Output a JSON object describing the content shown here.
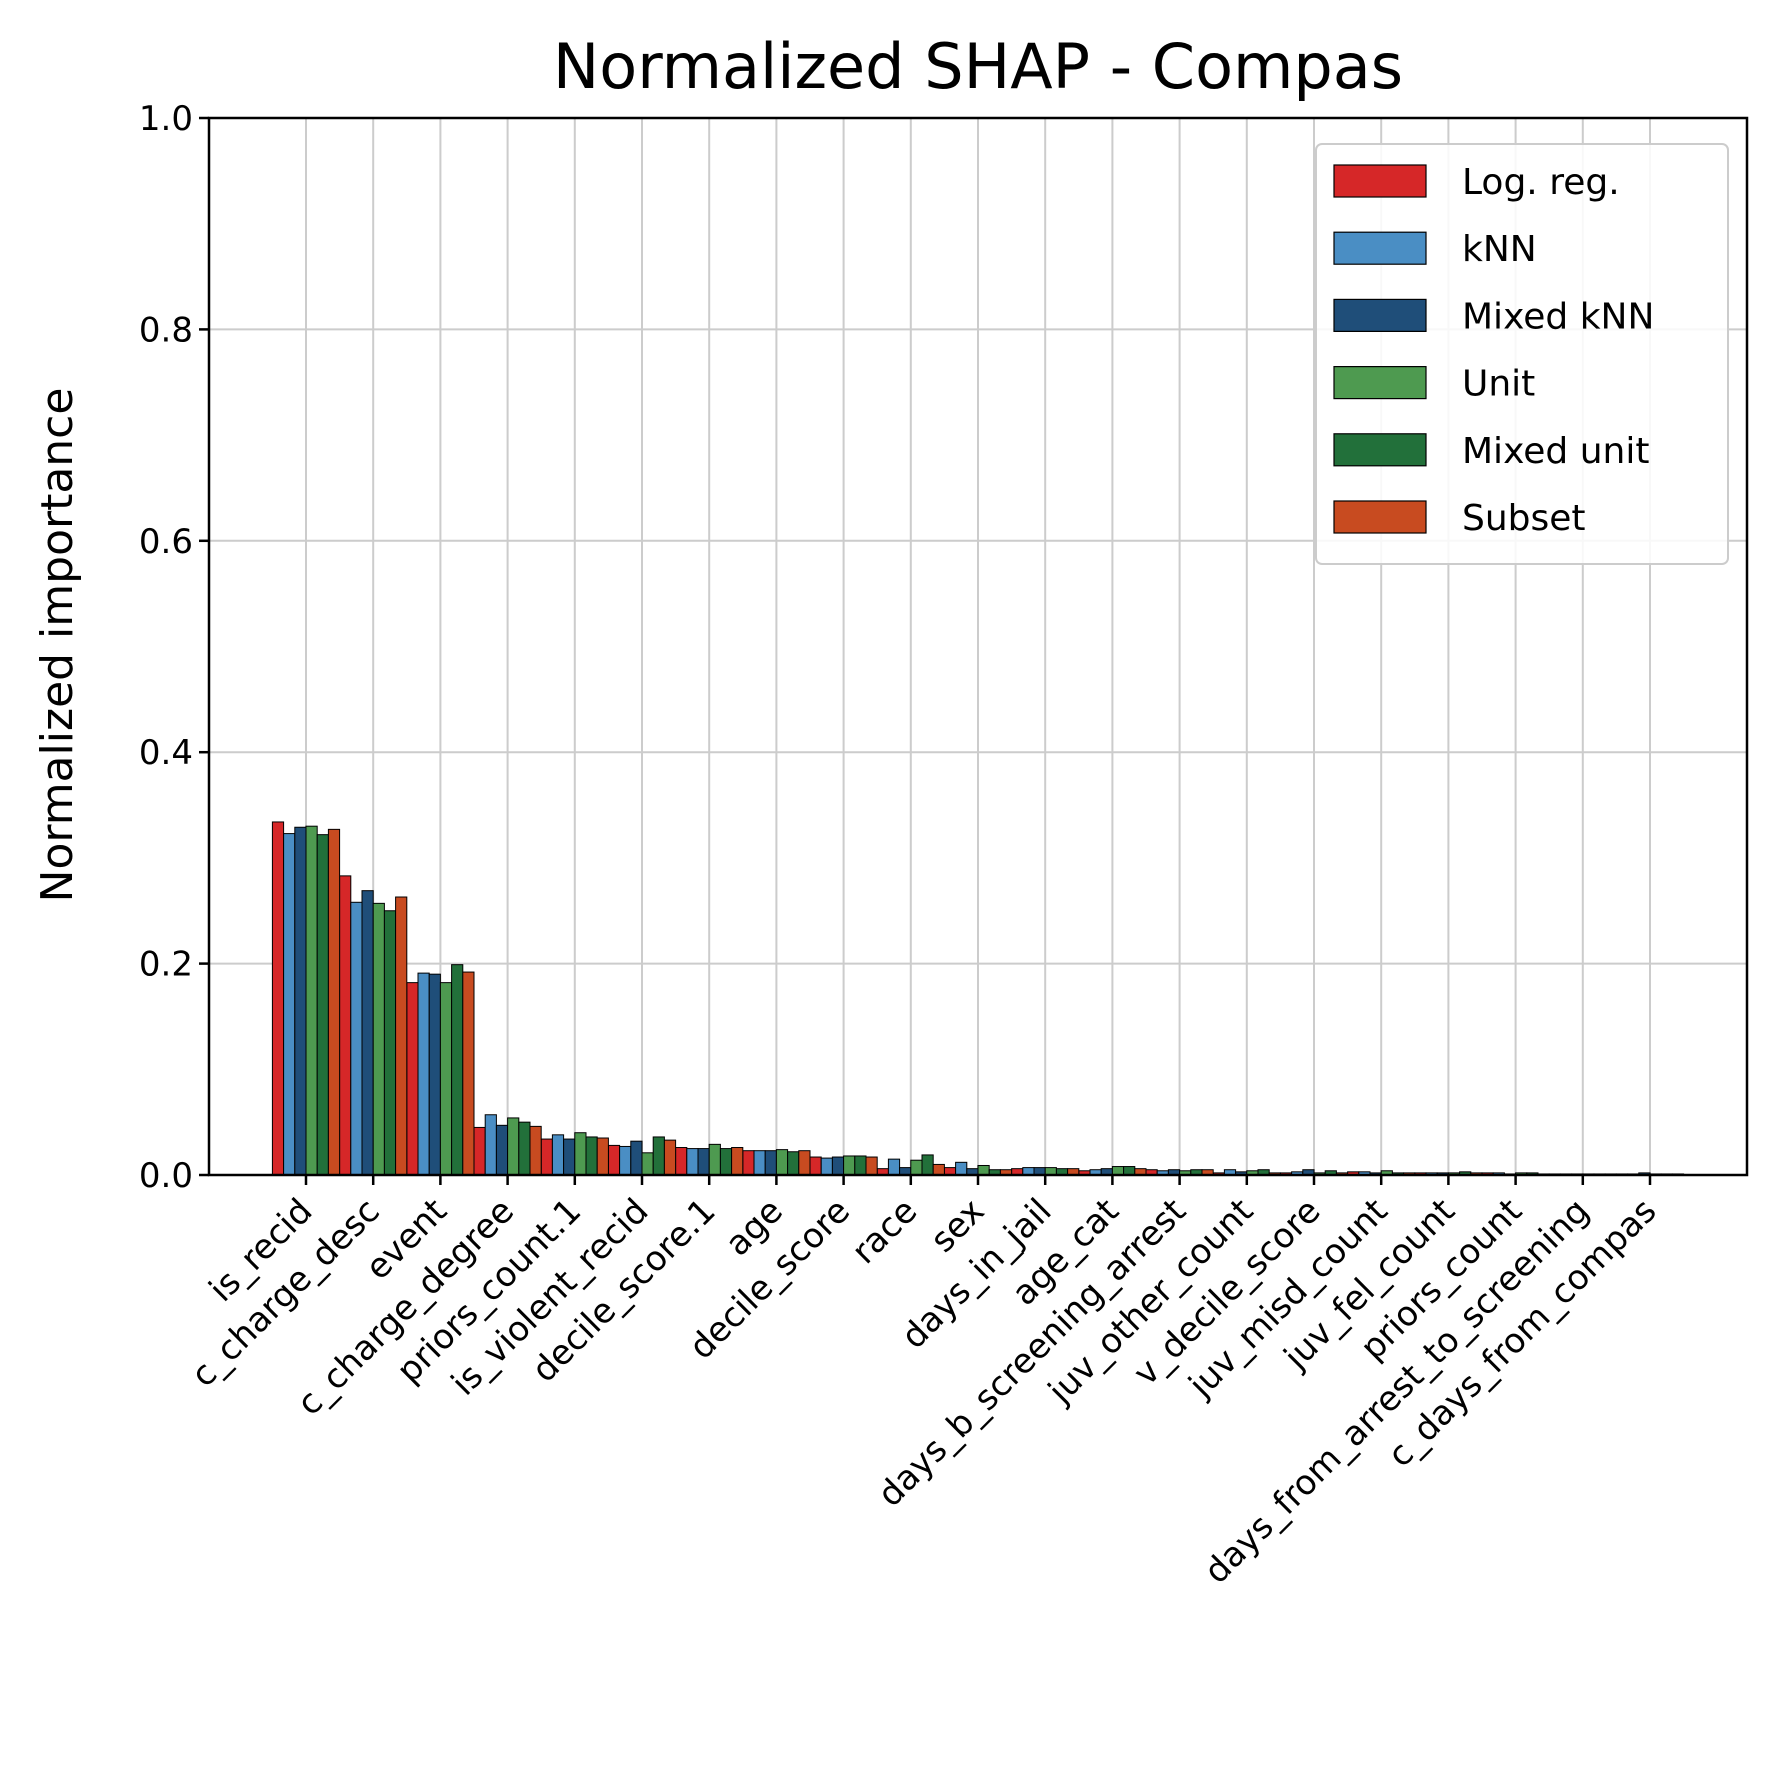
{
  "chart_data": {
    "type": "bar",
    "title": "Normalized SHAP - Compas",
    "xlabel": "",
    "ylabel": "Normalized importance",
    "ylim": [
      0,
      1.0
    ],
    "yticks": [
      "0.0",
      "0.2",
      "0.4",
      "0.6",
      "0.8",
      "1.0"
    ],
    "grid": true,
    "legend_position": "top-right",
    "categories": [
      "is_recid",
      "c_charge_desc",
      "event",
      "c_charge_degree",
      "priors_count.1",
      "is_violent_recid",
      "decile_score.1",
      "age",
      "decile_score",
      "race",
      "sex",
      "days_in_jail",
      "age_cat",
      "days_b_screening_arrest",
      "juv_other_count",
      "v_decile_score",
      "juv_misd_count",
      "juv_fel_count",
      "priors_count",
      "days_from_arrest_to_screening",
      "c_days_from_compas"
    ],
    "series": [
      {
        "name": "Log. reg.",
        "color": "#d62728",
        "values": [
          0.334,
          0.283,
          0.182,
          0.045,
          0.034,
          0.028,
          0.026,
          0.023,
          0.017,
          0.006,
          0.007,
          0.006,
          0.004,
          0.005,
          0.002,
          0.002,
          0.003,
          0.002,
          0.002,
          0.001,
          0.001
        ]
      },
      {
        "name": "kNN",
        "color": "#4a8ec4",
        "values": [
          0.323,
          0.258,
          0.191,
          0.057,
          0.038,
          0.027,
          0.025,
          0.023,
          0.016,
          0.015,
          0.012,
          0.007,
          0.005,
          0.004,
          0.005,
          0.003,
          0.003,
          0.002,
          0.002,
          0.001,
          0.001
        ]
      },
      {
        "name": "Mixed kNN",
        "color": "#1f4e79",
        "values": [
          0.329,
          0.269,
          0.19,
          0.047,
          0.034,
          0.032,
          0.025,
          0.023,
          0.017,
          0.007,
          0.006,
          0.007,
          0.006,
          0.005,
          0.003,
          0.005,
          0.002,
          0.002,
          0.001,
          0.001,
          0.002
        ]
      },
      {
        "name": "Unit",
        "color": "#4e9a50",
        "values": [
          0.33,
          0.257,
          0.182,
          0.054,
          0.04,
          0.021,
          0.029,
          0.024,
          0.018,
          0.014,
          0.009,
          0.007,
          0.008,
          0.004,
          0.004,
          0.002,
          0.004,
          0.002,
          0.002,
          0.001,
          0.001
        ]
      },
      {
        "name": "Mixed unit",
        "color": "#22703a",
        "values": [
          0.322,
          0.25,
          0.199,
          0.05,
          0.036,
          0.036,
          0.025,
          0.022,
          0.018,
          0.019,
          0.005,
          0.006,
          0.008,
          0.005,
          0.005,
          0.004,
          0.002,
          0.003,
          0.002,
          0.001,
          0.001
        ]
      },
      {
        "name": "Subset",
        "color": "#c84b20",
        "values": [
          0.327,
          0.263,
          0.192,
          0.046,
          0.035,
          0.033,
          0.026,
          0.023,
          0.017,
          0.01,
          0.005,
          0.006,
          0.006,
          0.005,
          0.002,
          0.002,
          0.002,
          0.002,
          0.001,
          0.001,
          0.001
        ]
      }
    ]
  }
}
